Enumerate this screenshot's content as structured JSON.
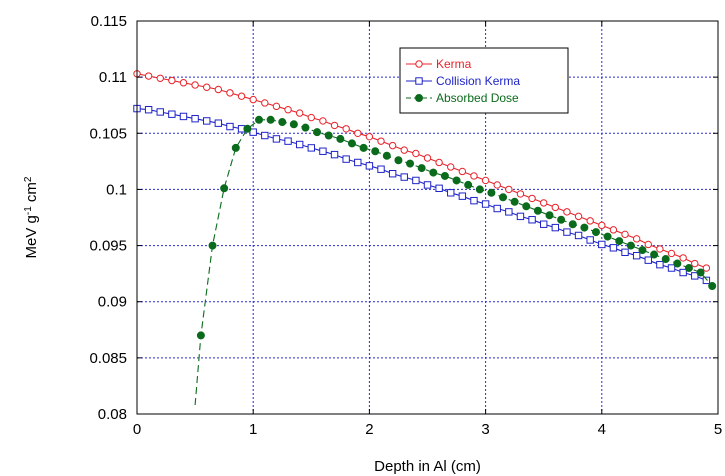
{
  "chart_data": {
    "type": "line",
    "title": "",
    "xlabel": "Depth in Al (cm)",
    "ylabel": {
      "base": "MeV g",
      "exp1": "-1",
      "mid": " cm",
      "exp2": "2"
    },
    "xlim": [
      0,
      5
    ],
    "ylim": [
      0.08,
      0.115
    ],
    "xticks": [
      "0",
      "1",
      "2",
      "3",
      "4",
      "5"
    ],
    "yticks": [
      "0.08",
      "0.085",
      "0.09",
      "0.095",
      "0.1",
      "0.105",
      "0.11",
      "0.115"
    ],
    "grid": true,
    "legend_position": "top-right",
    "series": [
      {
        "name": "Kerma",
        "color": "#e8242b",
        "marker": "open-circle",
        "line": "solid",
        "x": [
          0,
          0.1,
          0.2,
          0.3,
          0.4,
          0.5,
          0.6,
          0.7,
          0.8,
          0.9,
          1.0,
          1.1,
          1.2,
          1.3,
          1.4,
          1.5,
          1.6,
          1.7,
          1.8,
          1.9,
          2.0,
          2.1,
          2.2,
          2.3,
          2.4,
          2.5,
          2.6,
          2.7,
          2.8,
          2.9,
          3.0,
          3.1,
          3.2,
          3.3,
          3.4,
          3.5,
          3.6,
          3.7,
          3.8,
          3.9,
          4.0,
          4.1,
          4.2,
          4.3,
          4.4,
          4.5,
          4.6,
          4.7,
          4.8,
          4.9
        ],
        "y": [
          0.1103,
          0.1101,
          0.1099,
          0.1097,
          0.1095,
          0.1093,
          0.1091,
          0.1089,
          0.1086,
          0.1083,
          0.108,
          0.1077,
          0.1074,
          0.1071,
          0.1068,
          0.1064,
          0.1061,
          0.1057,
          0.1054,
          0.105,
          0.1047,
          0.1043,
          0.1039,
          0.1035,
          0.1032,
          0.1028,
          0.1024,
          0.102,
          0.1016,
          0.1012,
          0.1008,
          0.1004,
          0.1,
          0.0996,
          0.0992,
          0.0988,
          0.0984,
          0.098,
          0.0976,
          0.0972,
          0.0968,
          0.0964,
          0.096,
          0.0956,
          0.0951,
          0.0947,
          0.0943,
          0.0939,
          0.0934,
          0.093
        ]
      },
      {
        "name": "Collision Kerma",
        "color": "#1f24c8",
        "marker": "open-square",
        "line": "solid",
        "x": [
          0,
          0.1,
          0.2,
          0.3,
          0.4,
          0.5,
          0.6,
          0.7,
          0.8,
          0.9,
          1.0,
          1.1,
          1.2,
          1.3,
          1.4,
          1.5,
          1.6,
          1.7,
          1.8,
          1.9,
          2.0,
          2.1,
          2.2,
          2.3,
          2.4,
          2.5,
          2.6,
          2.7,
          2.8,
          2.9,
          3.0,
          3.1,
          3.2,
          3.3,
          3.4,
          3.5,
          3.6,
          3.7,
          3.8,
          3.9,
          4.0,
          4.1,
          4.2,
          4.3,
          4.4,
          4.5,
          4.6,
          4.7,
          4.8,
          4.9
        ],
        "y": [
          0.1072,
          0.1071,
          0.1069,
          0.1067,
          0.1065,
          0.1063,
          0.1061,
          0.1059,
          0.1056,
          0.1054,
          0.1051,
          0.1048,
          0.1045,
          0.1043,
          0.104,
          0.1037,
          0.1034,
          0.1031,
          0.1027,
          0.1024,
          0.1021,
          0.1018,
          0.1014,
          0.1011,
          0.1008,
          0.1004,
          0.1001,
          0.0997,
          0.0994,
          0.099,
          0.0987,
          0.0983,
          0.098,
          0.0976,
          0.0973,
          0.0969,
          0.0966,
          0.0962,
          0.0959,
          0.0955,
          0.0951,
          0.0948,
          0.0944,
          0.0941,
          0.0937,
          0.0933,
          0.093,
          0.0926,
          0.0923,
          0.0919
        ]
      },
      {
        "name": "Absorbed Dose",
        "color": "#0a6b1c",
        "marker": "filled-circle",
        "line": "dashed",
        "x": [
          0.5,
          0.55,
          0.65,
          0.75,
          0.85,
          0.95,
          1.05,
          1.15,
          1.25,
          1.35,
          1.45,
          1.55,
          1.65,
          1.75,
          1.85,
          1.95,
          2.05,
          2.15,
          2.25,
          2.35,
          2.45,
          2.55,
          2.65,
          2.75,
          2.85,
          2.95,
          3.05,
          3.15,
          3.25,
          3.35,
          3.45,
          3.55,
          3.65,
          3.75,
          3.85,
          3.95,
          4.05,
          4.15,
          4.25,
          4.35,
          4.45,
          4.55,
          4.65,
          4.75,
          4.85,
          4.95
        ],
        "y": [
          0.0808,
          0.087,
          0.095,
          0.1001,
          0.1037,
          0.1054,
          0.1062,
          0.1062,
          0.106,
          0.1058,
          0.1055,
          0.1051,
          0.1048,
          0.1045,
          0.1041,
          0.1037,
          0.1034,
          0.103,
          0.1026,
          0.1023,
          0.1019,
          0.1015,
          0.1012,
          0.1008,
          0.1004,
          0.1,
          0.0997,
          0.0993,
          0.0989,
          0.0985,
          0.0981,
          0.0977,
          0.0973,
          0.0969,
          0.0966,
          0.0962,
          0.0958,
          0.0954,
          0.095,
          0.0946,
          0.0942,
          0.0938,
          0.0934,
          0.093,
          0.0926,
          0.0914
        ],
        "markers_from_index": 1
      }
    ]
  }
}
